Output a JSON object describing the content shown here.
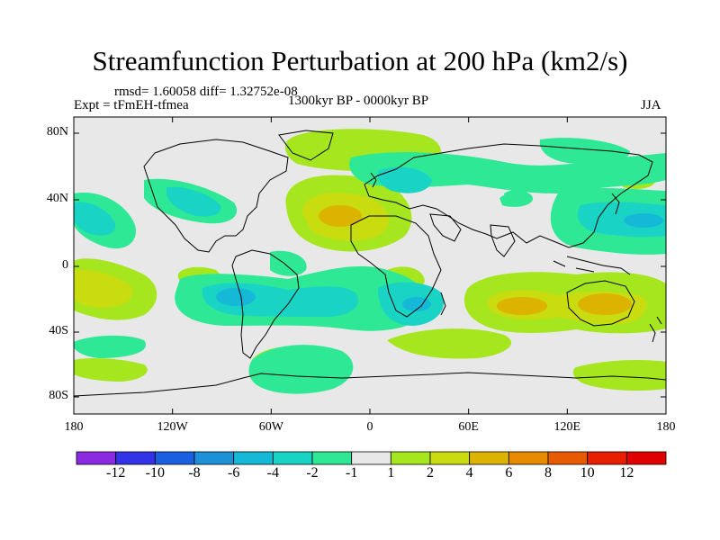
{
  "title": "Streamfunction Perturbation at 200 hPa (km2/s)",
  "stats": "rmsd= 1.60058 diff= 1.32752e-08",
  "experiment": "Expt = tFmEH-tfmea",
  "period": "1300kyr BP - 0000kyr BP",
  "season": "JJA",
  "map": {
    "lat_ticks": [
      "80N",
      "40N",
      "0",
      "40S",
      "80S"
    ],
    "lon_ticks": [
      "180",
      "120W",
      "60W",
      "0",
      "60E",
      "120E",
      "180"
    ],
    "background_color": "#e8e8e8"
  },
  "colorbar": {
    "labels": [
      "-12",
      "-10",
      "-8",
      "-6",
      "-4",
      "-2",
      "-1",
      "1",
      "2",
      "4",
      "6",
      "8",
      "10",
      "12"
    ],
    "colors": [
      "#8a2be2",
      "#3232e6",
      "#1a5fe0",
      "#1e90d8",
      "#16b8d8",
      "#19d4c4",
      "#2ee896",
      "#e8e8e8",
      "#a6e61e",
      "#c8dc10",
      "#dcb400",
      "#e88a00",
      "#e85a00",
      "#e81e00",
      "#e00000"
    ]
  }
}
